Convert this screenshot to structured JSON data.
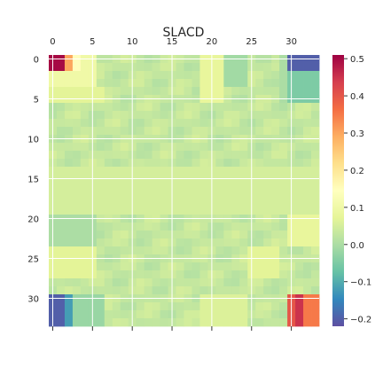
{
  "chart_data": {
    "type": "heatmap",
    "title": "SLACD",
    "colormap": "Spectral_r",
    "rows": 34,
    "cols": 34,
    "x_ticks": [
      "0",
      "5",
      "10",
      "15",
      "20",
      "25",
      "30"
    ],
    "y_ticks": [
      "0",
      "5",
      "10",
      "15",
      "20",
      "25",
      "30"
    ],
    "x_tick_values": [
      0,
      5,
      10,
      15,
      20,
      25,
      30
    ],
    "y_tick_values": [
      0,
      5,
      10,
      15,
      20,
      25,
      30
    ],
    "colorbar": {
      "range": [
        -0.22,
        0.51
      ],
      "ticks": [
        -0.2,
        -0.1,
        0.0,
        0.1,
        0.2,
        0.3,
        0.4,
        0.5
      ],
      "tick_labels": [
        "−0.2",
        "−0.1",
        "0.0",
        "0.1",
        "0.2",
        "0.3",
        "0.4",
        "0.5"
      ]
    },
    "grid": true,
    "base_value": 0.03,
    "patches": [
      {
        "r": [
          0,
          1
        ],
        "c": [
          0,
          1
        ],
        "v": 0.5
      },
      {
        "r": [
          0,
          1
        ],
        "c": [
          2,
          2
        ],
        "v": 0.3
      },
      {
        "r": [
          0,
          1
        ],
        "c": [
          3,
          3
        ],
        "v": 0.15
      },
      {
        "r": [
          0,
          1
        ],
        "c": [
          4,
          5
        ],
        "v": 0.1
      },
      {
        "r": [
          2,
          3
        ],
        "c": [
          0,
          5
        ],
        "v": 0.1
      },
      {
        "r": [
          4,
          5
        ],
        "c": [
          0,
          6
        ],
        "v": 0.07
      },
      {
        "r": [
          0,
          5
        ],
        "c": [
          19,
          21
        ],
        "v": 0.08
      },
      {
        "r": [
          0,
          3
        ],
        "c": [
          22,
          24
        ],
        "v": -0.01
      },
      {
        "r": [
          0,
          1
        ],
        "c": [
          30,
          33
        ],
        "v": -0.2
      },
      {
        "r": [
          2,
          5
        ],
        "c": [
          30,
          33
        ],
        "v": -0.05
      },
      {
        "r": [
          0,
          5
        ],
        "c": [
          29,
          29
        ],
        "v": 0.0
      },
      {
        "r": [
          14,
          19
        ],
        "c": [
          0,
          33
        ],
        "v": 0.05
      },
      {
        "r": [
          20,
          23
        ],
        "c": [
          0,
          5
        ],
        "v": 0.0
      },
      {
        "r": [
          20,
          23
        ],
        "c": [
          30,
          33
        ],
        "v": 0.08
      },
      {
        "r": [
          24,
          27
        ],
        "c": [
          0,
          5
        ],
        "v": 0.07
      },
      {
        "r": [
          24,
          27
        ],
        "c": [
          25,
          28
        ],
        "v": 0.07
      },
      {
        "r": [
          30,
          33
        ],
        "c": [
          0,
          1
        ],
        "v": -0.2
      },
      {
        "r": [
          30,
          33
        ],
        "c": [
          2,
          2
        ],
        "v": -0.12
      },
      {
        "r": [
          30,
          33
        ],
        "c": [
          3,
          6
        ],
        "v": -0.02
      },
      {
        "r": [
          30,
          33
        ],
        "c": [
          30,
          30
        ],
        "v": 0.4
      },
      {
        "r": [
          30,
          33
        ],
        "c": [
          31,
          31
        ],
        "v": 0.45
      },
      {
        "r": [
          30,
          33
        ],
        "c": [
          32,
          33
        ],
        "v": 0.35
      },
      {
        "r": [
          30,
          33
        ],
        "c": [
          19,
          24
        ],
        "v": 0.06
      }
    ]
  }
}
